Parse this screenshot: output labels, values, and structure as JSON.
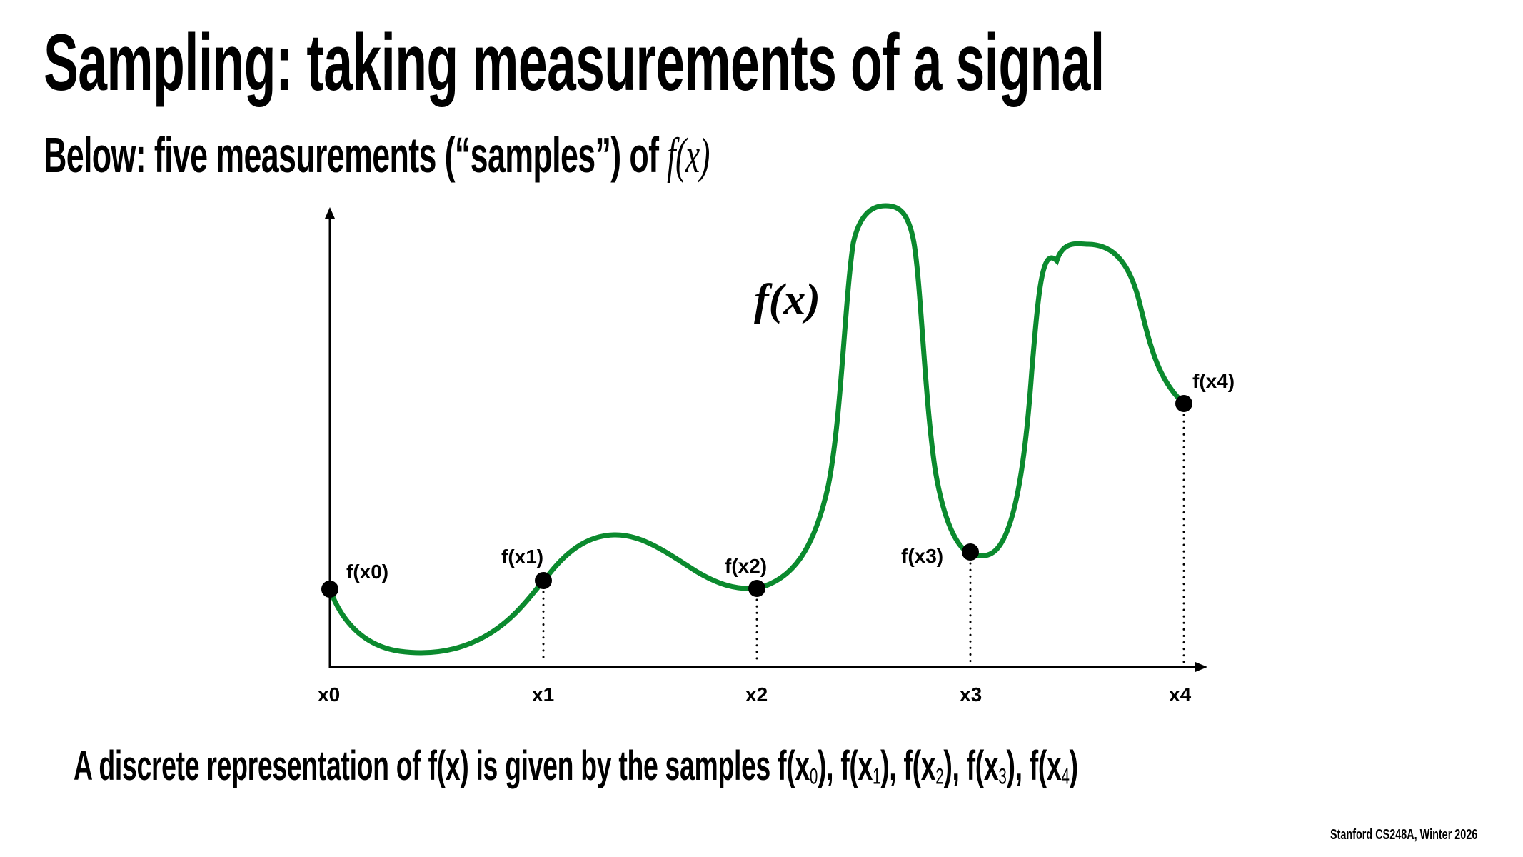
{
  "slide": {
    "title": "Sampling: taking measurements of a signal",
    "subtitle_prefix": "Below: five measurements (“samples”) of ",
    "subtitle_math": "f(x)",
    "caption_prefix": "A discrete representation of f(x) is given by the samples ",
    "caption_samples": [
      {
        "f": "f(x",
        "sub": "0",
        "close": ")",
        "sep": ", "
      },
      {
        "f": "f(x",
        "sub": "1",
        "close": ")",
        "sep": ", "
      },
      {
        "f": "f(x",
        "sub": "2",
        "close": ")",
        "sep": ", "
      },
      {
        "f": "f(x",
        "sub": "3",
        "close": ")",
        "sep": ", "
      },
      {
        "f": "f(x",
        "sub": "4",
        "close": ")",
        "sep": ""
      }
    ],
    "footer": "Stanford CS248A, Winter 2026"
  },
  "colors": {
    "curve": "#0b8a2e",
    "axis": "#000000",
    "sample_dot": "#000000",
    "background": "#ffffff"
  },
  "chart_data": {
    "type": "line",
    "title": "Sampling: taking measurements of a signal",
    "curve_label": "f(x)",
    "xlabel": "",
    "ylabel": "",
    "grid": false,
    "legend": "none",
    "x_ticks": [
      "x0",
      "x1",
      "x2",
      "x3",
      "x4"
    ],
    "samples": [
      {
        "x_label": "x0",
        "label": "f(x0)",
        "x": 0,
        "y": 0.22
      },
      {
        "x_label": "x1",
        "label": "f(x1)",
        "x": 1,
        "y": 0.25
      },
      {
        "x_label": "x2",
        "label": "f(x2)",
        "x": 2,
        "y": 0.23
      },
      {
        "x_label": "x3",
        "label": "f(x3)",
        "x": 3,
        "y": 0.34
      },
      {
        "x_label": "x4",
        "label": "f(x4)",
        "x": 4,
        "y": 0.57
      }
    ],
    "curve_shape_points": [
      {
        "x": 0.0,
        "y": 0.22
      },
      {
        "x": 0.48,
        "y": 0.04
      },
      {
        "x": 1.0,
        "y": 0.25
      },
      {
        "x": 1.32,
        "y": 0.4
      },
      {
        "x": 1.9,
        "y": 0.23
      },
      {
        "x": 2.0,
        "y": 0.23
      },
      {
        "x": 2.6,
        "y": 1.0
      },
      {
        "x": 3.0,
        "y": 0.34
      },
      {
        "x": 3.1,
        "y": 0.34
      },
      {
        "x": 3.56,
        "y": 0.91
      },
      {
        "x": 4.0,
        "y": 0.57
      }
    ],
    "ylim": [
      0,
      1.0
    ],
    "xlim": [
      0,
      4.1
    ]
  }
}
